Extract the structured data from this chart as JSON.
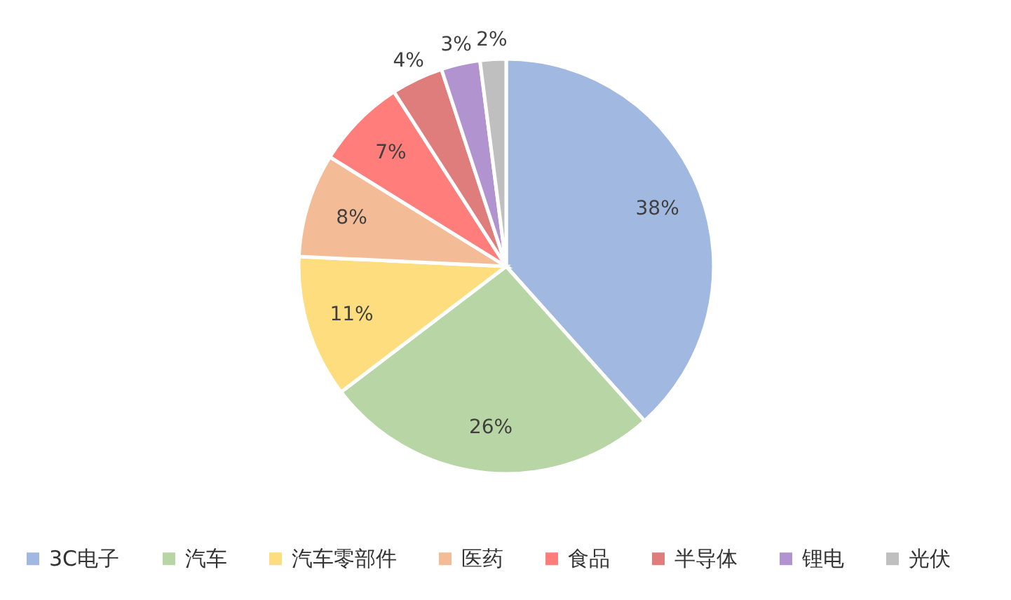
{
  "chart_data": {
    "type": "pie",
    "categories": [
      "3C电子",
      "汽车",
      "汽车零部件",
      "医药",
      "食品",
      "半导体",
      "锂电",
      "光伏"
    ],
    "values": [
      38,
      26,
      11,
      8,
      7,
      4,
      3,
      2
    ],
    "colors": [
      "#a1b8e0",
      "#b8d6a5",
      "#fedd7e",
      "#f4bc96",
      "#ff7d7b",
      "#de7d7c",
      "#b194cf",
      "#bfbfbf"
    ],
    "value_labels": [
      "38%",
      "26%",
      "11%",
      "8%",
      "7%",
      "4%",
      "3%",
      "2%"
    ],
    "legend": "bottom"
  }
}
